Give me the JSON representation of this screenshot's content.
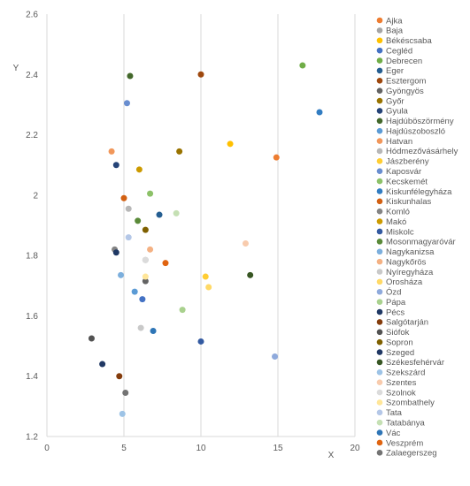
{
  "chart_data": {
    "type": "scatter",
    "title": "",
    "xlabel": "X",
    "ylabel": "Y",
    "xlim": [
      0,
      20
    ],
    "ylim": [
      1.2,
      2.6
    ],
    "x_ticks": [
      "0",
      "5",
      "10",
      "15",
      "20"
    ],
    "y_ticks": [
      "1.2",
      "1.4",
      "1.6",
      "1.8",
      "2",
      "2.2",
      "2.4",
      "2.6"
    ],
    "grid": "vertical",
    "legend_position": "right",
    "series": [
      {
        "name": "Ajka",
        "color": "#ED7D31",
        "points": [
          [
            14.9,
            2.125
          ]
        ]
      },
      {
        "name": "Baja",
        "color": "#A5A5A5",
        "points": [
          [
            6.4,
            1.785
          ]
        ]
      },
      {
        "name": "Békéscsaba",
        "color": "#FFC000",
        "points": [
          [
            11.9,
            2.17
          ]
        ]
      },
      {
        "name": "Cegléd",
        "color": "#4472C4",
        "points": [
          [
            6.2,
            1.655
          ]
        ]
      },
      {
        "name": "Debrecen",
        "color": "#70AD47",
        "points": [
          [
            16.6,
            2.43
          ]
        ]
      },
      {
        "name": "Eger",
        "color": "#255E91",
        "points": [
          [
            7.3,
            1.935
          ]
        ]
      },
      {
        "name": "Esztergom",
        "color": "#9E480E",
        "points": [
          [
            10.0,
            2.4
          ]
        ]
      },
      {
        "name": "Gyöngyös",
        "color": "#636363",
        "points": [
          [
            6.4,
            1.715
          ]
        ]
      },
      {
        "name": "Győr",
        "color": "#997300",
        "points": [
          [
            8.6,
            2.145
          ]
        ]
      },
      {
        "name": "Gyula",
        "color": "#264478",
        "points": [
          [
            4.5,
            2.1
          ]
        ]
      },
      {
        "name": "Hajdúböszörmény",
        "color": "#43682B",
        "points": [
          [
            5.4,
            2.395
          ]
        ]
      },
      {
        "name": "Hajdúszoboszló",
        "color": "#5B9BD5",
        "points": [
          [
            5.7,
            1.68
          ]
        ]
      },
      {
        "name": "Hatvan",
        "color": "#F1975A",
        "points": [
          [
            4.2,
            2.145
          ]
        ]
      },
      {
        "name": "Hódmezővásárhely",
        "color": "#B7B7B7",
        "points": [
          [
            5.3,
            1.955
          ]
        ]
      },
      {
        "name": "Jászberény",
        "color": "#FFCD33",
        "points": [
          [
            10.3,
            1.73
          ]
        ]
      },
      {
        "name": "Kaposvár",
        "color": "#698ED0",
        "points": [
          [
            5.2,
            2.305
          ]
        ]
      },
      {
        "name": "Kecskemét",
        "color": "#8CC168",
        "points": [
          [
            6.7,
            2.005
          ]
        ]
      },
      {
        "name": "Kiskunfélegyháza",
        "color": "#327DC2",
        "points": [
          [
            17.7,
            2.275
          ]
        ]
      },
      {
        "name": "Kiskunhalas",
        "color": "#D26012",
        "points": [
          [
            5.0,
            1.99
          ]
        ]
      },
      {
        "name": "Komló",
        "color": "#848484",
        "points": [
          [
            4.4,
            1.82
          ]
        ]
      },
      {
        "name": "Makó",
        "color": "#CC9A00",
        "points": [
          [
            6.0,
            2.085
          ]
        ]
      },
      {
        "name": "Miskolc",
        "color": "#335AA1",
        "points": [
          [
            10.0,
            1.515
          ]
        ]
      },
      {
        "name": "Mosonmagyaróvár",
        "color": "#5A8A39",
        "points": [
          [
            5.9,
            1.915
          ]
        ]
      },
      {
        "name": "Nagykanizsa",
        "color": "#7CAFDD",
        "points": [
          [
            4.8,
            1.735
          ]
        ]
      },
      {
        "name": "Nagykőrös",
        "color": "#F4B183",
        "points": [
          [
            6.7,
            1.82
          ]
        ]
      },
      {
        "name": "Nyíregyháza",
        "color": "#C9C9C9",
        "points": [
          [
            6.1,
            1.56
          ]
        ]
      },
      {
        "name": "Orosháza",
        "color": "#FFD966",
        "points": [
          [
            10.5,
            1.695
          ]
        ]
      },
      {
        "name": "Ózd",
        "color": "#8FAADC",
        "points": [
          [
            14.8,
            1.465
          ]
        ]
      },
      {
        "name": "Pápa",
        "color": "#A9D18E",
        "points": [
          [
            8.8,
            1.62
          ]
        ]
      },
      {
        "name": "Pécs",
        "color": "#1F3864",
        "points": [
          [
            4.5,
            1.81
          ]
        ]
      },
      {
        "name": "Salgótarján",
        "color": "#843C0C",
        "points": [
          [
            4.7,
            1.4
          ]
        ]
      },
      {
        "name": "Siófok",
        "color": "#525252",
        "points": [
          [
            2.9,
            1.525
          ]
        ]
      },
      {
        "name": "Sopron",
        "color": "#7F6000",
        "points": [
          [
            6.4,
            1.885
          ]
        ]
      },
      {
        "name": "Szeged",
        "color": "#203864",
        "points": [
          [
            3.6,
            1.44
          ]
        ]
      },
      {
        "name": "Székesfehérvár",
        "color": "#375623",
        "points": [
          [
            13.2,
            1.735
          ]
        ]
      },
      {
        "name": "Szekszárd",
        "color": "#9DC3E6",
        "points": [
          [
            4.9,
            1.275
          ]
        ]
      },
      {
        "name": "Szentes",
        "color": "#F8CBAD",
        "points": [
          [
            12.9,
            1.84
          ]
        ]
      },
      {
        "name": "Szolnok",
        "color": "#DBDBDB",
        "points": [
          [
            6.4,
            1.785
          ]
        ]
      },
      {
        "name": "Szombathely",
        "color": "#FFE699",
        "points": [
          [
            6.4,
            1.73
          ]
        ]
      },
      {
        "name": "Tata",
        "color": "#B4C7E7",
        "points": [
          [
            5.3,
            1.86
          ]
        ]
      },
      {
        "name": "Tatabánya",
        "color": "#C5E0B4",
        "points": [
          [
            8.4,
            1.94
          ]
        ]
      },
      {
        "name": "Vác",
        "color": "#2E75B6",
        "points": [
          [
            6.9,
            1.55
          ]
        ]
      },
      {
        "name": "Veszprém",
        "color": "#E06410",
        "points": [
          [
            7.7,
            1.775
          ]
        ]
      },
      {
        "name": "Zalaegerszeg",
        "color": "#737373",
        "points": [
          [
            5.1,
            1.345
          ]
        ]
      }
    ]
  }
}
